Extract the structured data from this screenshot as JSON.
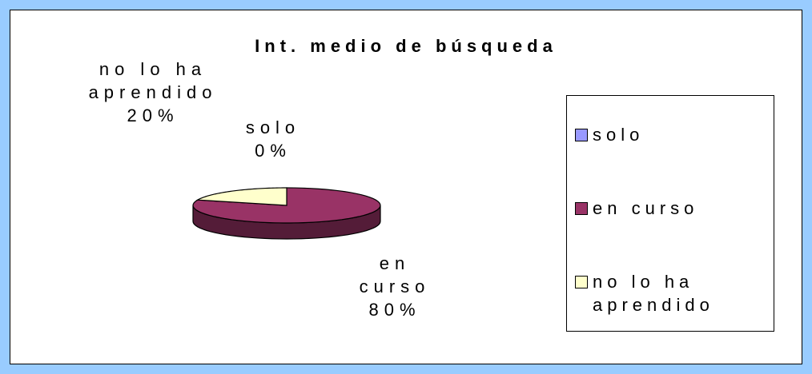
{
  "chart_data": {
    "type": "pie3d",
    "title": "Int. medio de búsqueda",
    "categories": [
      "solo",
      "en curso",
      "no lo ha aprendido"
    ],
    "values": [
      0,
      80,
      20
    ],
    "value_labels": [
      "0%",
      "80%",
      "20%"
    ],
    "colors": [
      "#9999ff",
      "#993366",
      "#ffffcc"
    ],
    "legend": "right"
  }
}
